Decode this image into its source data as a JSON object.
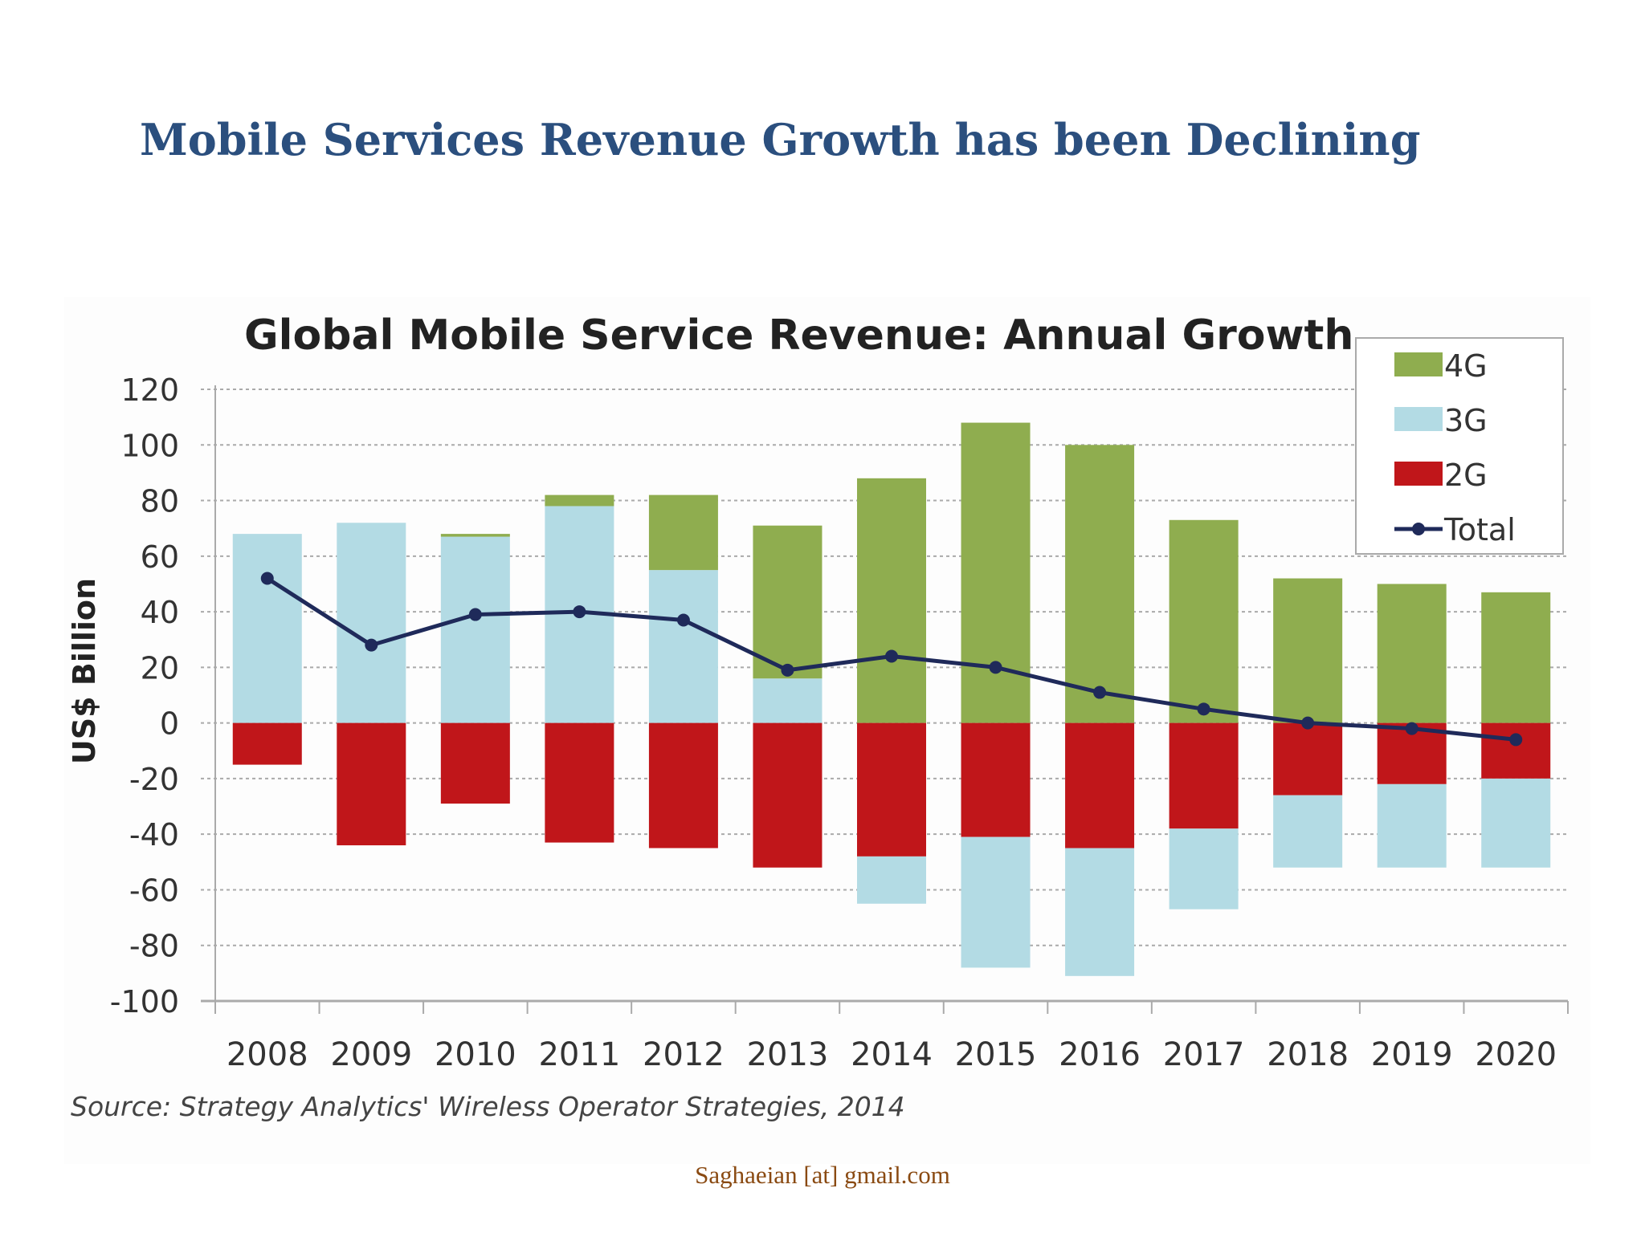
{
  "slide": {
    "title": "Mobile Services Revenue Growth has been Declining",
    "footer": "Saghaeian [at] gmail.com"
  },
  "chart_data": {
    "type": "bar",
    "stacked": true,
    "title": "Global Mobile Service Revenue: Annual Growth",
    "ylabel": "US$ Billion",
    "xlabel": "",
    "ylim": [
      -100,
      120
    ],
    "yticks": [
      120,
      100,
      80,
      60,
      40,
      20,
      0,
      -20,
      -40,
      -60,
      -80,
      -100
    ],
    "grid": true,
    "legend_position": "top-right",
    "source": "Source: Strategy Analytics' Wireless Operator Strategies, 2014",
    "categories": [
      "2008",
      "2009",
      "2010",
      "2011",
      "2012",
      "2013",
      "2014",
      "2015",
      "2016",
      "2017",
      "2018",
      "2019",
      "2020"
    ],
    "series": [
      {
        "name": "4G",
        "kind": "bar",
        "color": "#8fad4f",
        "values": [
          0,
          0,
          1,
          4,
          27,
          55,
          88,
          108,
          100,
          73,
          52,
          50,
          47
        ]
      },
      {
        "name": "3G",
        "kind": "bar",
        "color": "#b3dbe4",
        "values": [
          68,
          72,
          67,
          78,
          55,
          16,
          -17,
          -47,
          -46,
          -29,
          -26,
          -30,
          -32
        ]
      },
      {
        "name": "2G",
        "kind": "bar",
        "color": "#c0161a",
        "values": [
          -15,
          -44,
          -29,
          -43,
          -45,
          -52,
          -48,
          -41,
          -45,
          -38,
          -26,
          -22,
          -20
        ]
      },
      {
        "name": "Total",
        "kind": "line",
        "color": "#1f2a5a",
        "values": [
          52,
          28,
          39,
          40,
          37,
          19,
          24,
          20,
          11,
          5,
          0,
          -2,
          -6
        ]
      }
    ]
  }
}
